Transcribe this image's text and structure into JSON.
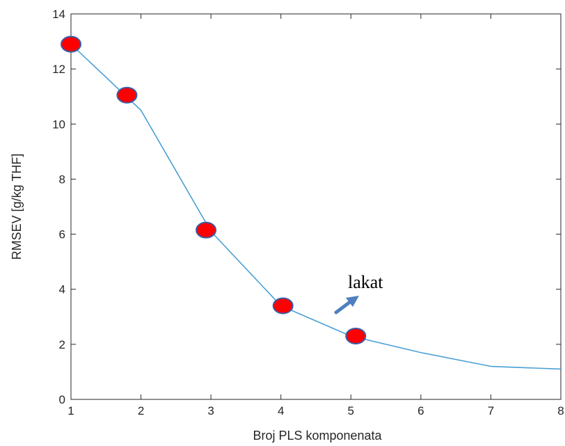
{
  "chart_data": {
    "type": "line",
    "xlabel": "Broj PLS komponenata",
    "ylabel": "RMSEV [g/kg THF]",
    "xlim": [
      1,
      8
    ],
    "ylim": [
      0,
      14
    ],
    "x_ticks": [
      "1",
      "2",
      "3",
      "4",
      "5",
      "6",
      "7",
      "8"
    ],
    "y_ticks": [
      "0",
      "2",
      "4",
      "6",
      "8",
      "10",
      "12",
      "14"
    ],
    "grid": false,
    "series": [
      {
        "x": [
          1,
          2,
          3,
          4,
          5,
          6,
          7,
          8
        ],
        "y": [
          12.9,
          10.5,
          6.1,
          3.4,
          2.3,
          1.7,
          1.2,
          1.1
        ],
        "color": "#4a9fd6"
      }
    ],
    "markers": {
      "x": [
        1.0,
        1.8,
        2.93,
        4.03,
        5.07
      ],
      "y": [
        12.9,
        11.05,
        6.15,
        3.4,
        2.3
      ],
      "fill": "#ff0000",
      "edge": "#3a5da8"
    },
    "annotation": {
      "text": "lakat",
      "arrow_color": "#4f7fbf"
    }
  }
}
